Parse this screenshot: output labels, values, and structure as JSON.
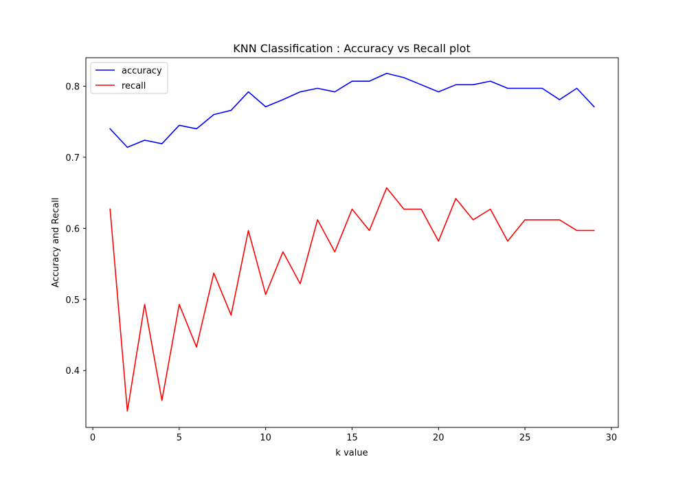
{
  "chart_data": {
    "type": "line",
    "title": "KNN Classification : Accuracy vs Recall plot",
    "xlabel": "k value",
    "ylabel": "Accuracy and Recall",
    "xlim": [
      -0.4,
      30.4
    ],
    "ylim": [
      0.32,
      0.84
    ],
    "xticks": [
      0,
      5,
      10,
      15,
      20,
      25,
      30
    ],
    "xtick_labels": [
      "0",
      "5",
      "10",
      "15",
      "20",
      "25",
      "30"
    ],
    "yticks": [
      0.4,
      0.5,
      0.6,
      0.7,
      0.8
    ],
    "ytick_labels": [
      "0.4",
      "0.5",
      "0.6",
      "0.7",
      "0.8"
    ],
    "grid": false,
    "legend_position": "top-left",
    "x": [
      1,
      2,
      3,
      4,
      5,
      6,
      7,
      8,
      9,
      10,
      11,
      12,
      13,
      14,
      15,
      16,
      17,
      18,
      19,
      20,
      21,
      22,
      23,
      24,
      25,
      26,
      27,
      28,
      29
    ],
    "series": [
      {
        "name": "accuracy",
        "color": "#0000ff",
        "values": [
          0.74,
          0.714,
          0.724,
          0.719,
          0.745,
          0.74,
          0.76,
          0.766,
          0.792,
          0.771,
          0.781,
          0.792,
          0.797,
          0.792,
          0.807,
          0.807,
          0.818,
          0.812,
          0.802,
          0.792,
          0.802,
          0.802,
          0.807,
          0.797,
          0.797,
          0.797,
          0.781,
          0.797,
          0.771
        ]
      },
      {
        "name": "recall",
        "color": "#ff0000",
        "values": [
          0.627,
          0.343,
          0.493,
          0.358,
          0.493,
          0.433,
          0.537,
          0.478,
          0.597,
          0.507,
          0.567,
          0.522,
          0.612,
          0.567,
          0.627,
          0.597,
          0.657,
          0.627,
          0.627,
          0.582,
          0.642,
          0.612,
          0.627,
          0.582,
          0.612,
          0.612,
          0.612,
          0.597,
          0.597
        ]
      }
    ]
  }
}
